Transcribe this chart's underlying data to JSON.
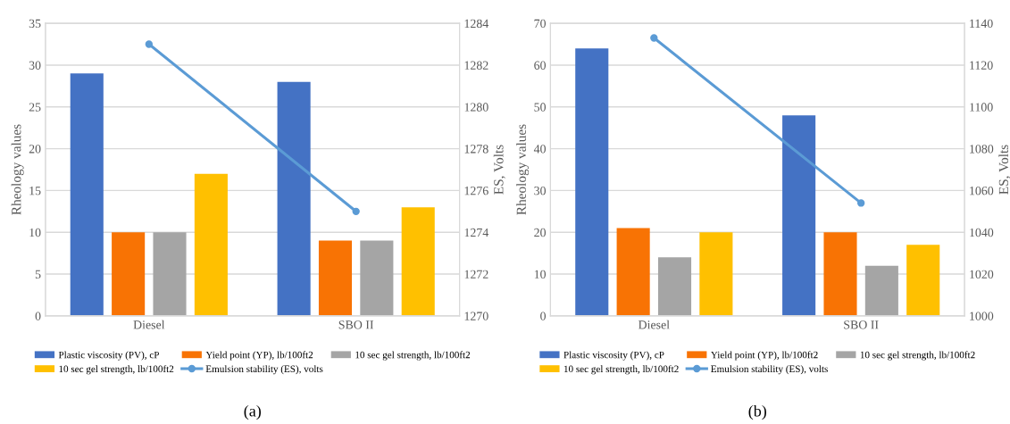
{
  "chart_data": [
    {
      "type": "bar",
      "categories": [
        "Diesel",
        "SBO II"
      ],
      "ylabel": "Rheology values",
      "y2label": "ES, Volts",
      "ylim": [
        0,
        35
      ],
      "yticks": [
        0,
        5,
        10,
        15,
        20,
        25,
        30,
        35
      ],
      "y2lim": [
        1270,
        1284
      ],
      "y2ticks": [
        1270,
        1272,
        1274,
        1276,
        1278,
        1280,
        1282,
        1284
      ],
      "grid": "y",
      "legend": "bottom",
      "annotations": [
        "(a)"
      ],
      "series": [
        {
          "name": "Plastic viscosity (PV), cP",
          "color": "#4472c4",
          "values": [
            29,
            28
          ]
        },
        {
          "name": "Yield point (YP), lb/100ft2",
          "color": "#f87304",
          "values": [
            10,
            9
          ]
        },
        {
          "name": "10 sec gel strength, lb/100ft2",
          "color": "#a5a5a5",
          "values": [
            10,
            9
          ]
        },
        {
          "name": "10 sec gel strength, lb/100ft2",
          "color": "#ffc000",
          "values": [
            17,
            13
          ]
        },
        {
          "name": "Emulsion stability (ES), volts",
          "color": "#5b9bd5",
          "type": "line",
          "axis": "y2",
          "marker": "circle",
          "values": [
            1283,
            1275
          ]
        }
      ]
    },
    {
      "type": "bar",
      "categories": [
        "Diesel",
        "SBO II"
      ],
      "ylabel": "Rheology values",
      "y2label": "ES, Volts",
      "ylim": [
        0,
        70
      ],
      "yticks": [
        0,
        10,
        20,
        30,
        40,
        50,
        60,
        70
      ],
      "y2lim": [
        1000,
        1140
      ],
      "y2ticks": [
        1000,
        1020,
        1040,
        1060,
        1080,
        1100,
        1120,
        1140
      ],
      "grid": "y",
      "legend": "bottom",
      "annotations": [
        "(b)"
      ],
      "series": [
        {
          "name": "Plastic viscosity (PV), cP",
          "color": "#4472c4",
          "values": [
            64,
            48
          ]
        },
        {
          "name": "Yield point (YP), lb/100ft2",
          "color": "#f87304",
          "values": [
            21,
            20
          ]
        },
        {
          "name": "10 sec gel strength, lb/100ft2",
          "color": "#a5a5a5",
          "values": [
            14,
            12
          ]
        },
        {
          "name": "10 sec gel strength, lb/100ft2",
          "color": "#ffc000",
          "values": [
            20,
            17
          ]
        },
        {
          "name": "Emulsion stability (ES), volts",
          "color": "#5b9bd5",
          "type": "line",
          "axis": "y2",
          "marker": "circle",
          "values": [
            1133,
            1054
          ]
        }
      ]
    }
  ]
}
